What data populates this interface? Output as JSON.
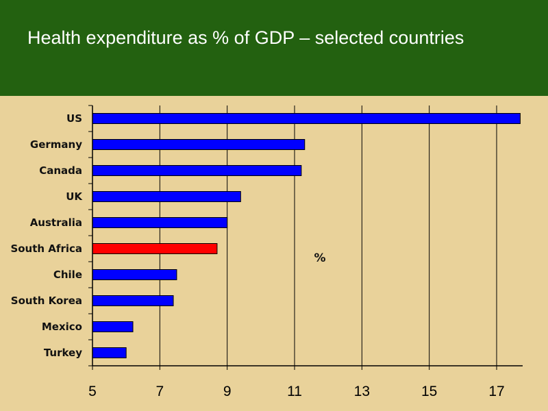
{
  "slide": {
    "title": "Health expenditure as % of GDP – selected countries",
    "background_color": "#e9d29a",
    "header_color": "#236110"
  },
  "chart_data": {
    "type": "bar",
    "orientation": "horizontal",
    "title": "Health expenditure as % of GDP – selected countries",
    "categories": [
      "US",
      "Germany",
      "Canada",
      "UK",
      "Australia",
      "South Africa",
      "Chile",
      "South Korea",
      "Mexico",
      "Turkey"
    ],
    "values": [
      17.7,
      11.3,
      11.2,
      9.4,
      9.0,
      8.7,
      7.5,
      7.4,
      6.2,
      6.0
    ],
    "xlabel": "",
    "ylabel": "",
    "annotation": "%",
    "xlim": [
      5,
      17.8
    ],
    "x_ticks": [
      "5",
      "7",
      "9",
      "11",
      "13",
      "15",
      "17"
    ],
    "grid": true,
    "bar_color": "#0000ff",
    "highlight_category": "South Africa",
    "highlight_color": "#ff0000"
  }
}
